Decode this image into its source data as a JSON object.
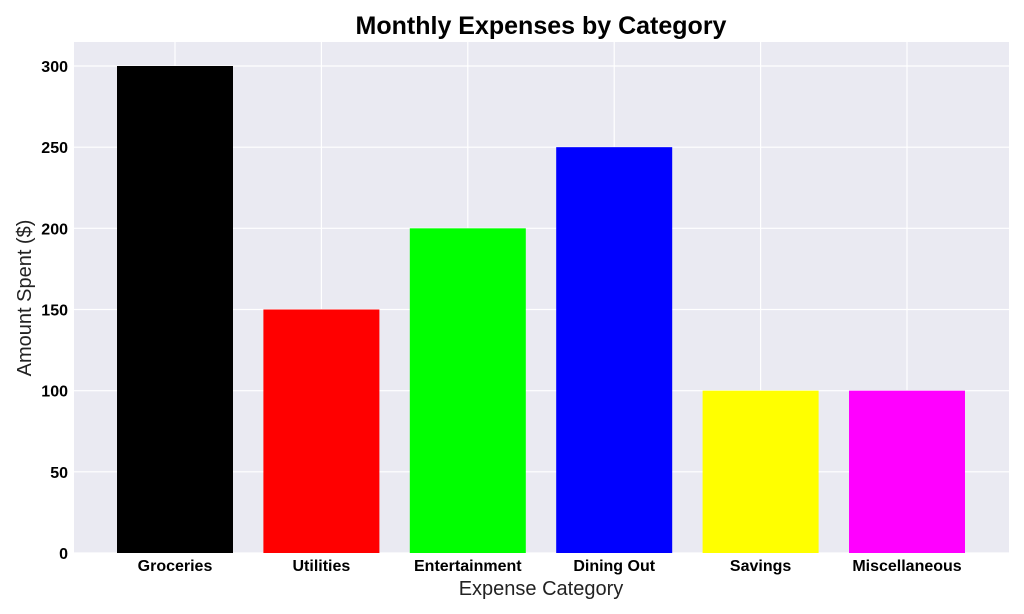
{
  "chart_data": {
    "type": "bar",
    "title": "Monthly Expenses by Category",
    "xlabel": "Expense Category",
    "ylabel": "Amount Spent ($)",
    "categories": [
      "Groceries",
      "Utilities",
      "Entertainment",
      "Dining Out",
      "Savings",
      "Miscellaneous"
    ],
    "values": [
      300,
      150,
      200,
      250,
      100,
      100
    ],
    "colors": [
      "#000000",
      "#ff0000",
      "#00ff00",
      "#0000ff",
      "#ffff00",
      "#ff00ff"
    ],
    "ylim": [
      0,
      315
    ],
    "yticks": [
      0,
      50,
      100,
      150,
      200,
      250,
      300
    ],
    "grid": true,
    "plot_background": "#eaeaf2"
  }
}
